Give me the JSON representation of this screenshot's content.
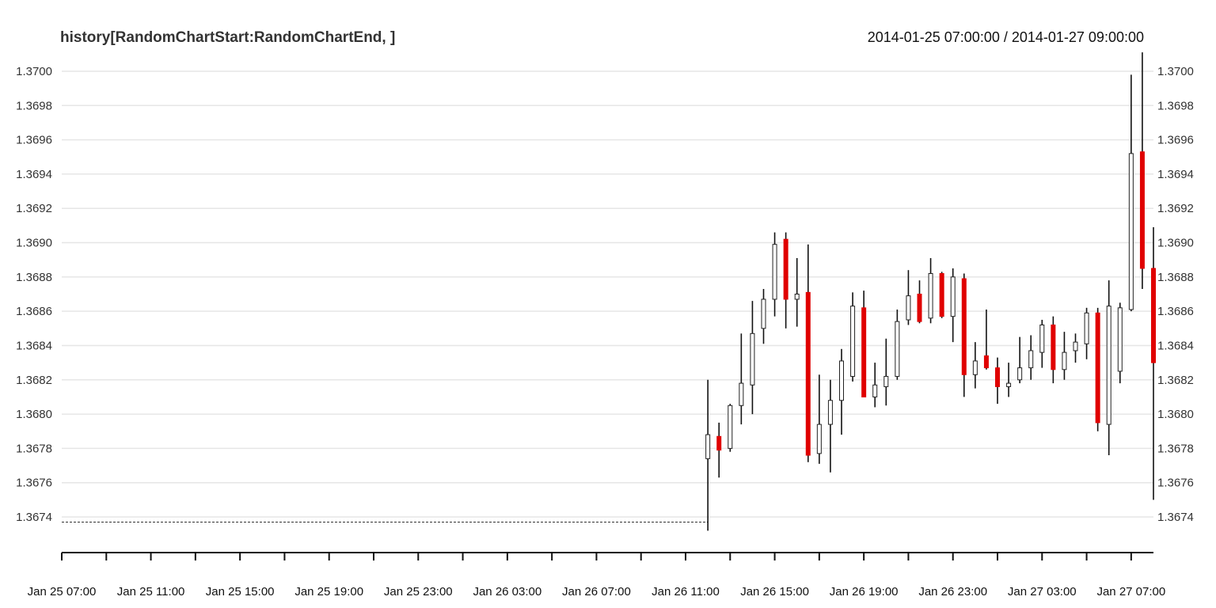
{
  "chart_data": {
    "type": "candlestick",
    "title": "history[RandomChartStart:RandomChartEnd, ]",
    "date_range": "2014-01-25 07:00:00 / 2014-01-27 09:00:00",
    "x_start": "Jan 25 07:00",
    "x_end": "Jan 27 08:00",
    "bar_interval_minutes": 30,
    "x_tick_labels": [
      "Jan 25 07:00",
      "Jan 25 11:00",
      "Jan 25 15:00",
      "Jan 25 19:00",
      "Jan 25 23:00",
      "Jan 26 03:00",
      "Jan 26 07:00",
      "Jan 26 11:00",
      "Jan 26 15:00",
      "Jan 26 19:00",
      "Jan 26 23:00",
      "Jan 27 03:00",
      "Jan 27 07:00"
    ],
    "y_ticks": [
      "1.3674",
      "1.3676",
      "1.3678",
      "1.3680",
      "1.3682",
      "1.3684",
      "1.3686",
      "1.3688",
      "1.3690",
      "1.3692",
      "1.3694",
      "1.3696",
      "1.3698",
      "1.3700"
    ],
    "y_range": [
      1.3673,
      1.3701
    ],
    "grid": true,
    "pre_data_line_level": 1.36737,
    "up_color": "#ffffff",
    "down_color": "#e00000",
    "candles": [
      {
        "open": 1.36774,
        "high": 1.3682,
        "low": 1.36732,
        "close": 1.36788
      },
      {
        "open": 1.36787,
        "high": 1.36795,
        "low": 1.36763,
        "close": 1.36779
      },
      {
        "open": 1.3678,
        "high": 1.36806,
        "low": 1.36778,
        "close": 1.36805
      },
      {
        "open": 1.36805,
        "high": 1.36847,
        "low": 1.36794,
        "close": 1.36818
      },
      {
        "open": 1.36817,
        "high": 1.36866,
        "low": 1.368,
        "close": 1.36847
      },
      {
        "open": 1.3685,
        "high": 1.36873,
        "low": 1.36841,
        "close": 1.36867
      },
      {
        "open": 1.36867,
        "high": 1.36906,
        "low": 1.36857,
        "close": 1.36899
      },
      {
        "open": 1.36902,
        "high": 1.36906,
        "low": 1.3685,
        "close": 1.36867
      },
      {
        "open": 1.36867,
        "high": 1.36891,
        "low": 1.36851,
        "close": 1.3687
      },
      {
        "open": 1.36871,
        "high": 1.36899,
        "low": 1.36772,
        "close": 1.36776
      },
      {
        "open": 1.36777,
        "high": 1.36823,
        "low": 1.36771,
        "close": 1.36794
      },
      {
        "open": 1.36794,
        "high": 1.3682,
        "low": 1.36766,
        "close": 1.36808
      },
      {
        "open": 1.36808,
        "high": 1.36838,
        "low": 1.36788,
        "close": 1.36831
      },
      {
        "open": 1.36822,
        "high": 1.36871,
        "low": 1.36819,
        "close": 1.36863
      },
      {
        "open": 1.36862,
        "high": 1.36872,
        "low": 1.3681,
        "close": 1.3681
      },
      {
        "open": 1.3681,
        "high": 1.3683,
        "low": 1.36804,
        "close": 1.36817
      },
      {
        "open": 1.36816,
        "high": 1.36844,
        "low": 1.36805,
        "close": 1.36822
      },
      {
        "open": 1.36822,
        "high": 1.36861,
        "low": 1.3682,
        "close": 1.36854
      },
      {
        "open": 1.36855,
        "high": 1.36884,
        "low": 1.36852,
        "close": 1.36869
      },
      {
        "open": 1.3687,
        "high": 1.36878,
        "low": 1.36853,
        "close": 1.36854
      },
      {
        "open": 1.36856,
        "high": 1.36891,
        "low": 1.36853,
        "close": 1.36882
      },
      {
        "open": 1.36882,
        "high": 1.36883,
        "low": 1.36856,
        "close": 1.36857
      },
      {
        "open": 1.36857,
        "high": 1.36885,
        "low": 1.36842,
        "close": 1.3688
      },
      {
        "open": 1.36879,
        "high": 1.36882,
        "low": 1.3681,
        "close": 1.36823
      },
      {
        "open": 1.36823,
        "high": 1.36842,
        "low": 1.36815,
        "close": 1.36831
      },
      {
        "open": 1.36834,
        "high": 1.36861,
        "low": 1.36826,
        "close": 1.36827
      },
      {
        "open": 1.36827,
        "high": 1.36833,
        "low": 1.36806,
        "close": 1.36816
      },
      {
        "open": 1.36816,
        "high": 1.3683,
        "low": 1.3681,
        "close": 1.36818
      },
      {
        "open": 1.3682,
        "high": 1.36845,
        "low": 1.36818,
        "close": 1.36827
      },
      {
        "open": 1.36827,
        "high": 1.36846,
        "low": 1.3682,
        "close": 1.36837
      },
      {
        "open": 1.36836,
        "high": 1.36855,
        "low": 1.36827,
        "close": 1.36852
      },
      {
        "open": 1.36852,
        "high": 1.36857,
        "low": 1.36818,
        "close": 1.36826
      },
      {
        "open": 1.36826,
        "high": 1.36848,
        "low": 1.3682,
        "close": 1.36836
      },
      {
        "open": 1.36837,
        "high": 1.36847,
        "low": 1.3683,
        "close": 1.36842
      },
      {
        "open": 1.36841,
        "high": 1.36862,
        "low": 1.36832,
        "close": 1.36859
      },
      {
        "open": 1.36859,
        "high": 1.36862,
        "low": 1.3679,
        "close": 1.36795
      },
      {
        "open": 1.36794,
        "high": 1.36878,
        "low": 1.36776,
        "close": 1.36863
      },
      {
        "open": 1.36825,
        "high": 1.36865,
        "low": 1.36818,
        "close": 1.36862
      },
      {
        "open": 1.36861,
        "high": 1.36998,
        "low": 1.3686,
        "close": 1.36952
      },
      {
        "open": 1.36953,
        "high": 1.37011,
        "low": 1.36873,
        "close": 1.36885
      },
      {
        "open": 1.36885,
        "high": 1.36909,
        "low": 1.3675,
        "close": 1.3683
      }
    ]
  }
}
